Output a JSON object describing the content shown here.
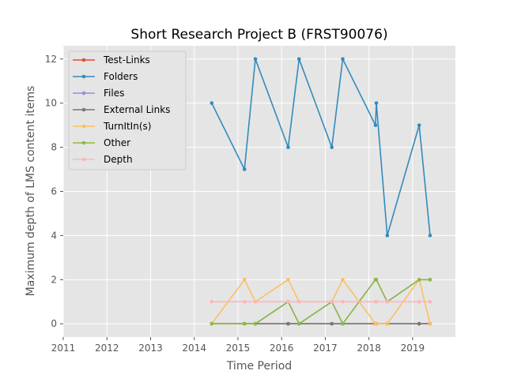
{
  "chart_data": {
    "type": "line",
    "title": "Short Research Project B (FRST90076)",
    "xlabel": "Time Period",
    "ylabel": "Maximum depth of LMS content items",
    "xlim": [
      2011.0,
      2019.98
    ],
    "ylim": [
      -0.6,
      12.6
    ],
    "xticks": [
      2011,
      2012,
      2013,
      2014,
      2015,
      2016,
      2017,
      2018,
      2019
    ],
    "yticks": [
      0,
      2,
      4,
      6,
      8,
      10,
      12
    ],
    "grid": true,
    "legend_position": "top-left",
    "x": [
      2014.4,
      2015.15,
      2015.4,
      2016.15,
      2016.4,
      2017.15,
      2017.4,
      2018.15,
      2018.17,
      2018.42,
      2019.15,
      2019.4
    ],
    "series": [
      {
        "name": "Test-Links",
        "color": "#E24A33",
        "values": [
          0,
          0,
          0,
          0,
          0,
          0,
          0,
          0,
          0,
          0,
          0,
          0
        ]
      },
      {
        "name": "Folders",
        "color": "#348ABD",
        "values": [
          10,
          7,
          12,
          8,
          12,
          8,
          12,
          9,
          10,
          4,
          9,
          4
        ]
      },
      {
        "name": "Files",
        "color": "#988ED5",
        "values": [
          0,
          0,
          0,
          1,
          0,
          1,
          0,
          2,
          2,
          1,
          2,
          2
        ]
      },
      {
        "name": "External Links",
        "color": "#777777",
        "values": [
          0,
          0,
          0,
          0,
          0,
          0,
          0,
          0,
          0,
          0,
          0,
          0
        ]
      },
      {
        "name": "TurnItIn(s)",
        "color": "#FBC15E",
        "values": [
          0,
          2,
          1,
          2,
          1,
          1,
          2,
          0,
          0,
          0,
          2,
          0
        ]
      },
      {
        "name": "Other",
        "color": "#8EBA42",
        "values": [
          0,
          0,
          0,
          1,
          0,
          1,
          0,
          2,
          2,
          1,
          2,
          2
        ]
      },
      {
        "name": "Depth",
        "color": "#FFB5B8",
        "values": [
          1,
          1,
          1,
          1,
          1,
          1,
          1,
          1,
          1,
          1,
          1,
          1
        ]
      }
    ]
  },
  "colors": {
    "plot_background": "#E5E5E5",
    "grid": "#FFFFFF"
  }
}
